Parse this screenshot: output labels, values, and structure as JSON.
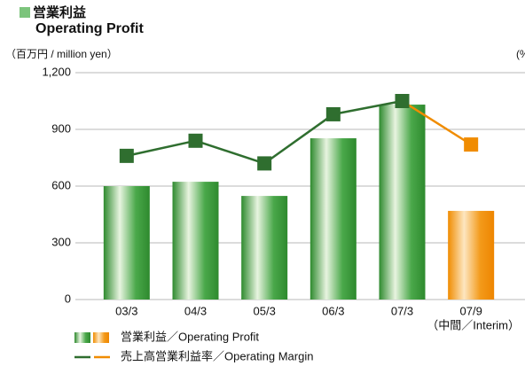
{
  "chart_data": {
    "type": "bar_line",
    "title": "営業利益",
    "subtitle": "Operating Profit",
    "y_label": "（百万円 / million yen）",
    "y2_label": "(%)",
    "categories": [
      "03/3",
      "04/3",
      "05/3",
      "06/3",
      "07/3",
      "07/9"
    ],
    "annotation": "（中間／Interim）",
    "series": [
      {
        "name": "営業利益／Operating Profit",
        "kind": "bar",
        "colors": [
          "#3c9c3c",
          "#3c9c3c",
          "#3c9c3c",
          "#3c9c3c",
          "#3c9c3c",
          "#f08c00"
        ],
        "values": [
          600,
          623,
          548,
          853,
          1031,
          469
        ]
      },
      {
        "name": "売上高営業利益率／Operating Margin",
        "kind": "line",
        "axis": "y2",
        "colors": [
          "#2f6e2f",
          "#2f6e2f",
          "#2f6e2f",
          "#2f6e2f",
          "#2f6e2f",
          "#f08c00"
        ],
        "values": [
          7.6,
          8.4,
          7.2,
          9.8,
          10.5,
          8.2
        ]
      }
    ],
    "ylim": [
      0,
      1200
    ],
    "yticks": [
      0,
      300,
      600,
      900,
      {
        "value": 1200,
        "label": "1,200"
      }
    ],
    "y2lim": [
      0,
      12
    ],
    "grid": true
  }
}
